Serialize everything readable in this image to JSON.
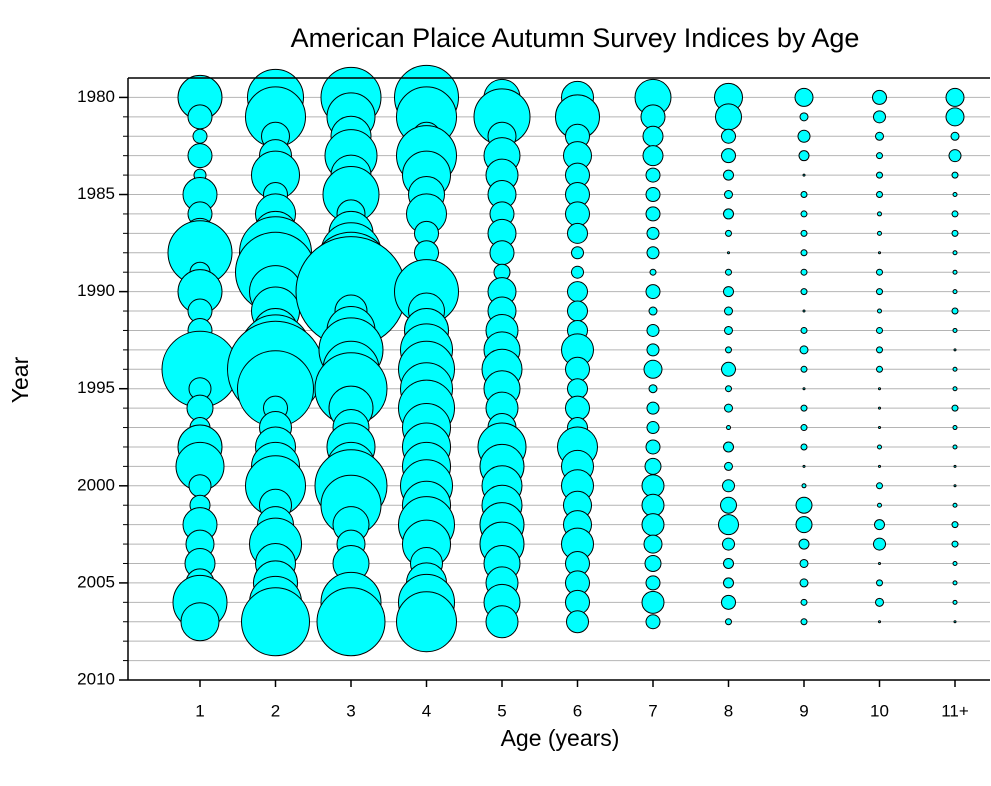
{
  "chart_data": {
    "type": "bubble",
    "title": "American Plaice Autumn Survey Indices by Age",
    "x_label": "Age (years)",
    "y_label": "Year",
    "categories": [
      "1",
      "2",
      "3",
      "4",
      "5",
      "6",
      "7",
      "8",
      "9",
      "10",
      "11+"
    ],
    "years": [
      1980,
      1981,
      1982,
      1983,
      1984,
      1985,
      1986,
      1987,
      1988,
      1989,
      1990,
      1991,
      1992,
      1993,
      1994,
      1995,
      1996,
      1997,
      1998,
      1999,
      2000,
      2001,
      2002,
      2003,
      2004,
      2005,
      2006,
      2007
    ],
    "sizes": [
      [
        22,
        12,
        7,
        12,
        6,
        17,
        12,
        15,
        32,
        10,
        22,
        12,
        12,
        15,
        38,
        11,
        13,
        10,
        22,
        24,
        11,
        10,
        17,
        14,
        15,
        14,
        27,
        19
      ],
      [
        28,
        30,
        14,
        16,
        24,
        12,
        20,
        22,
        36,
        40,
        26,
        24,
        22,
        35,
        48,
        38,
        12,
        16,
        20,
        24,
        30,
        16,
        18,
        26,
        20,
        22,
        26,
        34
      ],
      [
        30,
        24,
        20,
        26,
        20,
        28,
        14,
        22,
        30,
        40,
        55,
        16,
        24,
        32,
        28,
        36,
        22,
        18,
        24,
        24,
        36,
        30,
        18,
        14,
        18,
        10,
        30,
        34
      ],
      [
        32,
        30,
        14,
        30,
        24,
        18,
        20,
        12,
        12,
        12,
        32,
        18,
        22,
        26,
        28,
        26,
        28,
        24,
        24,
        24,
        26,
        24,
        28,
        24,
        16,
        20,
        28,
        30
      ],
      [
        18,
        28,
        14,
        18,
        16,
        14,
        12,
        14,
        12,
        8,
        14,
        14,
        16,
        18,
        20,
        18,
        16,
        14,
        24,
        22,
        20,
        20,
        22,
        22,
        18,
        16,
        18,
        16
      ],
      [
        16,
        22,
        12,
        14,
        12,
        12,
        12,
        10,
        6,
        6,
        10,
        10,
        10,
        16,
        12,
        10,
        12,
        10,
        20,
        16,
        16,
        14,
        14,
        16,
        12,
        12,
        12,
        11
      ],
      [
        18,
        12,
        10,
        10,
        7,
        7,
        7,
        6,
        6,
        3,
        7,
        4,
        6,
        6,
        9,
        4,
        6,
        6,
        7,
        8,
        11,
        11,
        11,
        9,
        8,
        7,
        11,
        7
      ],
      [
        14,
        13,
        7,
        7,
        5,
        4,
        5,
        3,
        1,
        3,
        5,
        4,
        4,
        3,
        7,
        3,
        4,
        2,
        5,
        4,
        6,
        8,
        10,
        6,
        5,
        5,
        7,
        3
      ],
      [
        9,
        4,
        6,
        5,
        1,
        3,
        3,
        3,
        3,
        3,
        3,
        1,
        3,
        4,
        3,
        1,
        3,
        3,
        3,
        1,
        2,
        8,
        8,
        5,
        4,
        4,
        3,
        3
      ],
      [
        7,
        6,
        4,
        3,
        3,
        3,
        2,
        2,
        1,
        3,
        3,
        2,
        3,
        3,
        3,
        1,
        1,
        1,
        2,
        1,
        3,
        2,
        5,
        6,
        1,
        3,
        4,
        1
      ],
      [
        9,
        9,
        4,
        6,
        3,
        2,
        3,
        3,
        2,
        2,
        2,
        3,
        2,
        1,
        2,
        2,
        3,
        2,
        2,
        1,
        1,
        2,
        3,
        3,
        2,
        2,
        2,
        1
      ]
    ],
    "color": "#00ffff",
    "ylim": [
      1979,
      2010
    ],
    "y_inverted": true,
    "yticks": [
      1980,
      1985,
      1990,
      1995,
      2000,
      2005,
      2010
    ],
    "yminor_ticks": [
      1981,
      1982,
      1983,
      1984,
      1986,
      1987,
      1988,
      1989,
      1991,
      1992,
      1993,
      1994,
      1996,
      1997,
      1998,
      1999,
      2001,
      2002,
      2003,
      2004,
      2006,
      2007,
      2008,
      2009
    ],
    "grid": true
  }
}
